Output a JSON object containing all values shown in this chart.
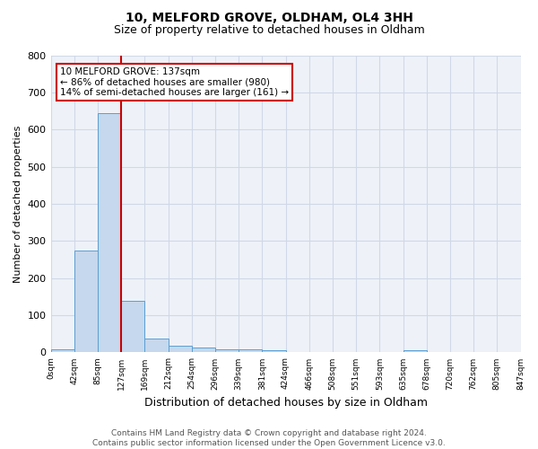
{
  "title1": "10, MELFORD GROVE, OLDHAM, OL4 3HH",
  "title2": "Size of property relative to detached houses in Oldham",
  "xlabel": "Distribution of detached houses by size in Oldham",
  "ylabel": "Number of detached properties",
  "footnote": "Contains HM Land Registry data © Crown copyright and database right 2024.\nContains public sector information licensed under the Open Government Licence v3.0.",
  "bin_labels": [
    "0sqm",
    "42sqm",
    "85sqm",
    "127sqm",
    "169sqm",
    "212sqm",
    "254sqm",
    "296sqm",
    "339sqm",
    "381sqm",
    "424sqm",
    "466sqm",
    "508sqm",
    "551sqm",
    "593sqm",
    "635sqm",
    "678sqm",
    "720sqm",
    "762sqm",
    "805sqm",
    "847sqm"
  ],
  "bar_values": [
    8,
    275,
    645,
    140,
    38,
    18,
    12,
    9,
    9,
    5,
    2,
    0,
    0,
    0,
    0,
    7,
    0,
    0,
    0,
    0
  ],
  "bar_color": "#c5d8ed",
  "bar_edge_color": "#5a9fd4",
  "vline_x": 3,
  "vline_color": "#cc0000",
  "annotation_text": "10 MELFORD GROVE: 137sqm\n← 86% of detached houses are smaller (980)\n14% of semi-detached houses are larger (161) →",
  "annotation_box_color": "#ffffff",
  "annotation_box_edge": "#cc0000",
  "ylim": [
    0,
    800
  ],
  "yticks": [
    0,
    100,
    200,
    300,
    400,
    500,
    600,
    700,
    800
  ],
  "grid_color": "#d0d8e8",
  "bg_color": "#eef2f8",
  "ylabel_color": "#000000",
  "title1_fontsize": 10,
  "title2_fontsize": 9,
  "xlabel_fontsize": 9,
  "ylabel_fontsize": 8,
  "footnote_fontsize": 6.5,
  "annotation_fontsize": 7.5
}
